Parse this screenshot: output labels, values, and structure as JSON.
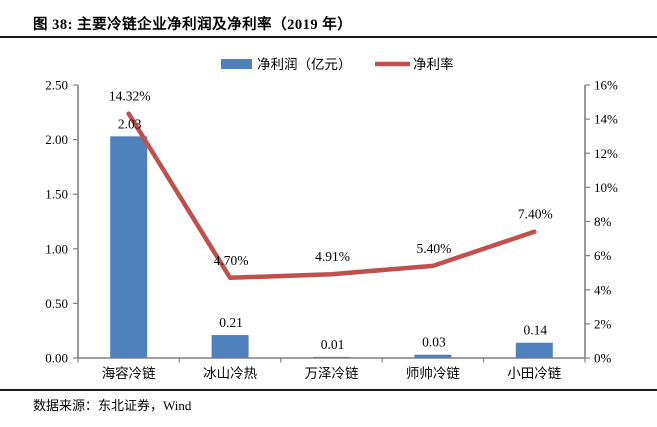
{
  "figure": {
    "title": "图 38: 主要冷链企业净利润及净利率（2019 年）",
    "source": "数据来源：东北证券，Wind"
  },
  "legend": {
    "bar_label": "净利润（亿元）",
    "line_label": "净利率"
  },
  "colors": {
    "bar": "#4F81BD",
    "line": "#C0504D",
    "axis": "#808080",
    "divider": "#1a1a1a"
  },
  "chart_data": {
    "type": "bar+line combo",
    "title": "主要冷链企业净利润及净利率（2019 年）",
    "categories": [
      "海容冷链",
      "冰山冷热",
      "万泽冷链",
      "师帅冷链",
      "小田冷链"
    ],
    "series": [
      {
        "name": "净利润（亿元）",
        "type": "bar",
        "axis": "left",
        "values": [
          2.03,
          0.21,
          0.01,
          0.03,
          0.14
        ],
        "labels": [
          "2.03",
          "0.21",
          "0.01",
          "0.03",
          "0.14"
        ]
      },
      {
        "name": "净利率",
        "type": "line",
        "axis": "right",
        "values": [
          14.32,
          4.7,
          4.91,
          5.4,
          7.4
        ],
        "labels": [
          "14.32%",
          "4.70%",
          "4.91%",
          "5.40%",
          "7.40%"
        ]
      }
    ],
    "left_axis": {
      "min": 0,
      "max": 2.5,
      "step": 0.5,
      "tick_labels": [
        "0.00",
        "0.50",
        "1.00",
        "1.50",
        "2.00",
        "2.50"
      ]
    },
    "right_axis": {
      "min": 0,
      "max": 16,
      "step": 2,
      "tick_labels": [
        "0%",
        "2%",
        "4%",
        "6%",
        "8%",
        "10%",
        "12%",
        "14%",
        "16%"
      ]
    },
    "legend_position": "top-center",
    "grid": false
  }
}
